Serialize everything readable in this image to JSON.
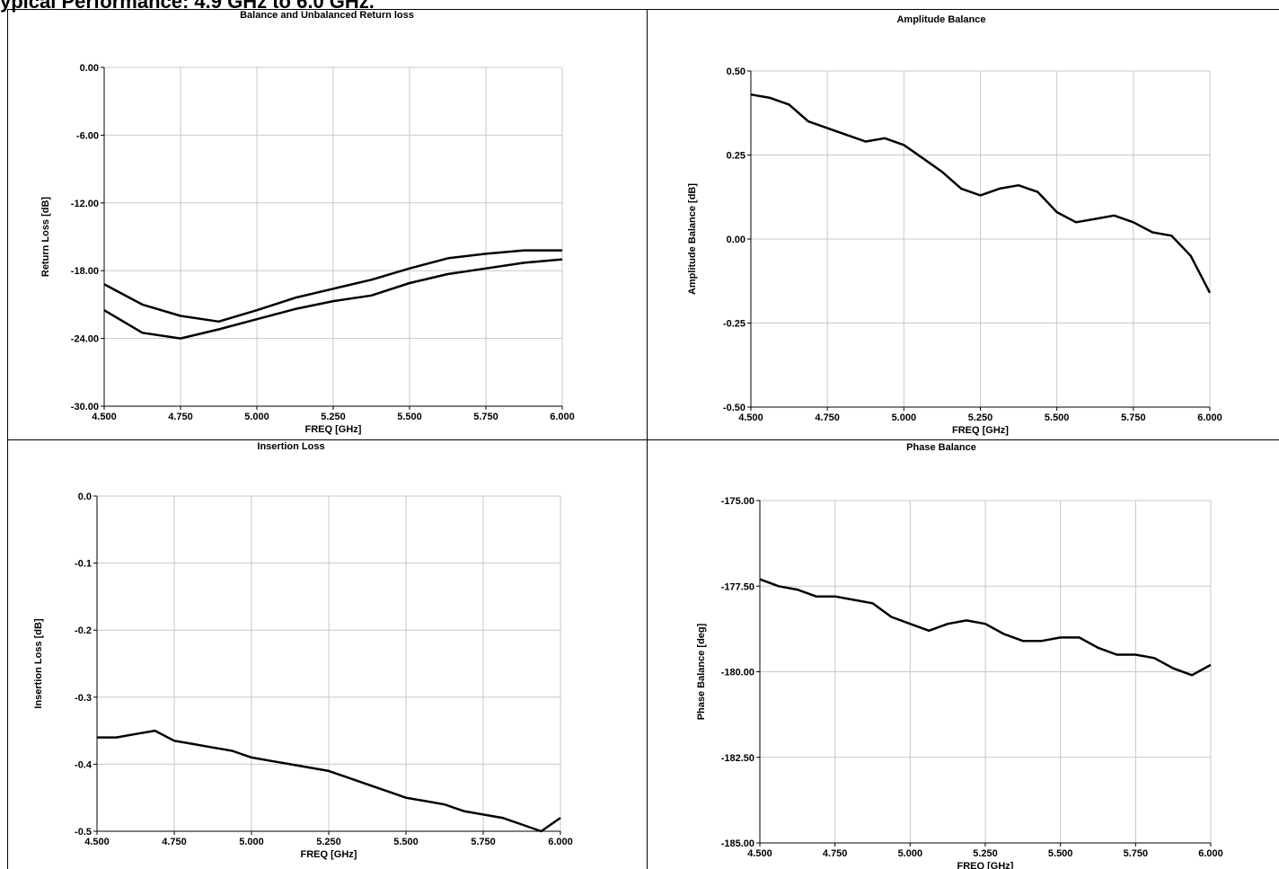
{
  "page_title": "ypical Performance: 4.9 GHz to 6.0 GHz.",
  "chart_data": [
    {
      "type": "line",
      "title": "Balance and Unbalanced Return loss",
      "xlabel": "FREQ [GHz]",
      "ylabel": "Return Loss [dB]",
      "x": [
        4.5,
        4.625,
        4.75,
        4.875,
        5.0,
        5.125,
        5.25,
        5.375,
        5.5,
        5.625,
        5.75,
        5.875,
        6.0
      ],
      "series": [
        {
          "color": "#000000",
          "values": [
            -19.2,
            -21.0,
            -22.0,
            -22.5,
            -21.5,
            -20.4,
            -19.6,
            -18.8,
            -17.8,
            -16.9,
            -16.5,
            -16.2,
            -16.2
          ]
        },
        {
          "color": "#000000",
          "values": [
            -21.5,
            -23.5,
            -24.0,
            -23.2,
            -22.3,
            -21.4,
            -20.7,
            -20.2,
            -19.1,
            -18.3,
            -17.8,
            -17.3,
            -17.0
          ]
        }
      ],
      "xlim": [
        4.5,
        6.0
      ],
      "ylim": [
        -30,
        0
      ],
      "xticks": [
        {
          "value": 4.5,
          "label": "4.500"
        },
        {
          "value": 4.75,
          "label": "4.750"
        },
        {
          "value": 5.0,
          "label": "5.000"
        },
        {
          "value": 5.25,
          "label": "5.250"
        },
        {
          "value": 5.5,
          "label": "5.500"
        },
        {
          "value": 5.75,
          "label": "5.750"
        },
        {
          "value": 6.0,
          "label": "6.000"
        }
      ],
      "yticks": [
        {
          "value": -30,
          "label": "-30.00"
        },
        {
          "value": -24,
          "label": "-24.00"
        },
        {
          "value": -18,
          "label": "-18.00"
        },
        {
          "value": -12,
          "label": "-12.00"
        },
        {
          "value": -6,
          "label": "-6.00"
        },
        {
          "value": 0,
          "label": "0.00"
        }
      ],
      "grid": true
    },
    {
      "type": "line",
      "title": "Amplitude Balance",
      "xlabel": "FREQ [GHz]",
      "ylabel": "Amplitude Balance [dB]",
      "x": [
        4.5,
        4.5625,
        4.625,
        4.6875,
        4.75,
        4.8125,
        4.875,
        4.9375,
        5.0,
        5.0625,
        5.125,
        5.1875,
        5.25,
        5.3125,
        5.375,
        5.4375,
        5.5,
        5.5625,
        5.625,
        5.6875,
        5.75,
        5.8125,
        5.875,
        5.9375,
        6.0
      ],
      "series": [
        {
          "color": "#000000",
          "values": [
            0.43,
            0.42,
            0.4,
            0.35,
            0.33,
            0.31,
            0.29,
            0.3,
            0.28,
            0.24,
            0.2,
            0.15,
            0.13,
            0.15,
            0.16,
            0.14,
            0.08,
            0.05,
            0.06,
            0.07,
            0.05,
            0.02,
            0.01,
            -0.05,
            -0.16
          ]
        }
      ],
      "xlim": [
        4.5,
        6.0
      ],
      "ylim": [
        -0.5,
        0.5
      ],
      "xticks": [
        {
          "value": 4.5,
          "label": "4.500"
        },
        {
          "value": 4.75,
          "label": "4.750"
        },
        {
          "value": 5.0,
          "label": "5.000"
        },
        {
          "value": 5.25,
          "label": "5.250"
        },
        {
          "value": 5.5,
          "label": "5.500"
        },
        {
          "value": 5.75,
          "label": "5.750"
        },
        {
          "value": 6.0,
          "label": "6.000"
        }
      ],
      "yticks": [
        {
          "value": -0.5,
          "label": "-0.50"
        },
        {
          "value": -0.25,
          "label": "-0.25"
        },
        {
          "value": 0,
          "label": "0.00"
        },
        {
          "value": 0.25,
          "label": "0.25"
        },
        {
          "value": 0.5,
          "label": "0.50"
        }
      ],
      "grid": true
    },
    {
      "type": "line",
      "title": "Insertion Loss",
      "xlabel": "FREQ [GHz]",
      "ylabel": "Insertion Loss [dB]",
      "x": [
        4.5,
        4.5625,
        4.625,
        4.6875,
        4.75,
        4.8125,
        4.875,
        4.9375,
        5.0,
        5.0625,
        5.125,
        5.1875,
        5.25,
        5.3125,
        5.375,
        5.4375,
        5.5,
        5.5625,
        5.625,
        5.6875,
        5.75,
        5.8125,
        5.875,
        5.9375,
        6.0
      ],
      "series": [
        {
          "color": "#000000",
          "values": [
            -0.36,
            -0.36,
            -0.355,
            -0.35,
            -0.365,
            -0.37,
            -0.375,
            -0.38,
            -0.39,
            -0.395,
            -0.4,
            -0.405,
            -0.41,
            -0.42,
            -0.43,
            -0.44,
            -0.45,
            -0.455,
            -0.46,
            -0.47,
            -0.475,
            -0.48,
            -0.49,
            -0.5,
            -0.48
          ]
        }
      ],
      "xlim": [
        4.5,
        6.0
      ],
      "ylim": [
        -0.5,
        0
      ],
      "xticks": [
        {
          "value": 4.5,
          "label": "4.500"
        },
        {
          "value": 4.75,
          "label": "4.750"
        },
        {
          "value": 5.0,
          "label": "5.000"
        },
        {
          "value": 5.25,
          "label": "5.250"
        },
        {
          "value": 5.5,
          "label": "5.500"
        },
        {
          "value": 5.75,
          "label": "5.750"
        },
        {
          "value": 6.0,
          "label": "6.000"
        }
      ],
      "yticks": [
        -0.5,
        -0.4,
        -0.3,
        -0.2,
        -0.1,
        {
          "value": 0,
          "label": "0.0"
        }
      ],
      "grid": true
    },
    {
      "type": "line",
      "title": "Phase Balance",
      "xlabel": "FREQ [GHz]",
      "ylabel": "Phase Balance [deg]",
      "x": [
        4.5,
        4.5625,
        4.625,
        4.6875,
        4.75,
        4.8125,
        4.875,
        4.9375,
        5.0,
        5.0625,
        5.125,
        5.1875,
        5.25,
        5.3125,
        5.375,
        5.4375,
        5.5,
        5.5625,
        5.625,
        5.6875,
        5.75,
        5.8125,
        5.875,
        5.9375,
        6.0
      ],
      "series": [
        {
          "color": "#000000",
          "values": [
            -177.3,
            -177.5,
            -177.6,
            -177.8,
            -177.8,
            -177.9,
            -178.0,
            -178.4,
            -178.6,
            -178.8,
            -178.6,
            -178.5,
            -178.6,
            -178.9,
            -179.1,
            -179.1,
            -179.0,
            -179.0,
            -179.3,
            -179.5,
            -179.5,
            -179.6,
            -179.9,
            -180.1,
            -179.8
          ]
        }
      ],
      "xlim": [
        4.5,
        6.0
      ],
      "ylim": [
        -185,
        -175
      ],
      "xticks": [
        {
          "value": 4.5,
          "label": "4.500"
        },
        {
          "value": 4.75,
          "label": "4.750"
        },
        {
          "value": 5.0,
          "label": "5.000"
        },
        {
          "value": 5.25,
          "label": "5.250"
        },
        {
          "value": 5.5,
          "label": "5.500"
        },
        {
          "value": 5.75,
          "label": "5.750"
        },
        {
          "value": 6.0,
          "label": "6.000"
        }
      ],
      "yticks": [
        {
          "value": -185,
          "label": "-185.00"
        },
        {
          "value": -182.5,
          "label": "-182.50"
        },
        {
          "value": -180,
          "label": "-180.00"
        },
        {
          "value": -177.5,
          "label": "-177.50"
        },
        {
          "value": -175,
          "label": "-175.00"
        }
      ],
      "grid": true
    }
  ]
}
